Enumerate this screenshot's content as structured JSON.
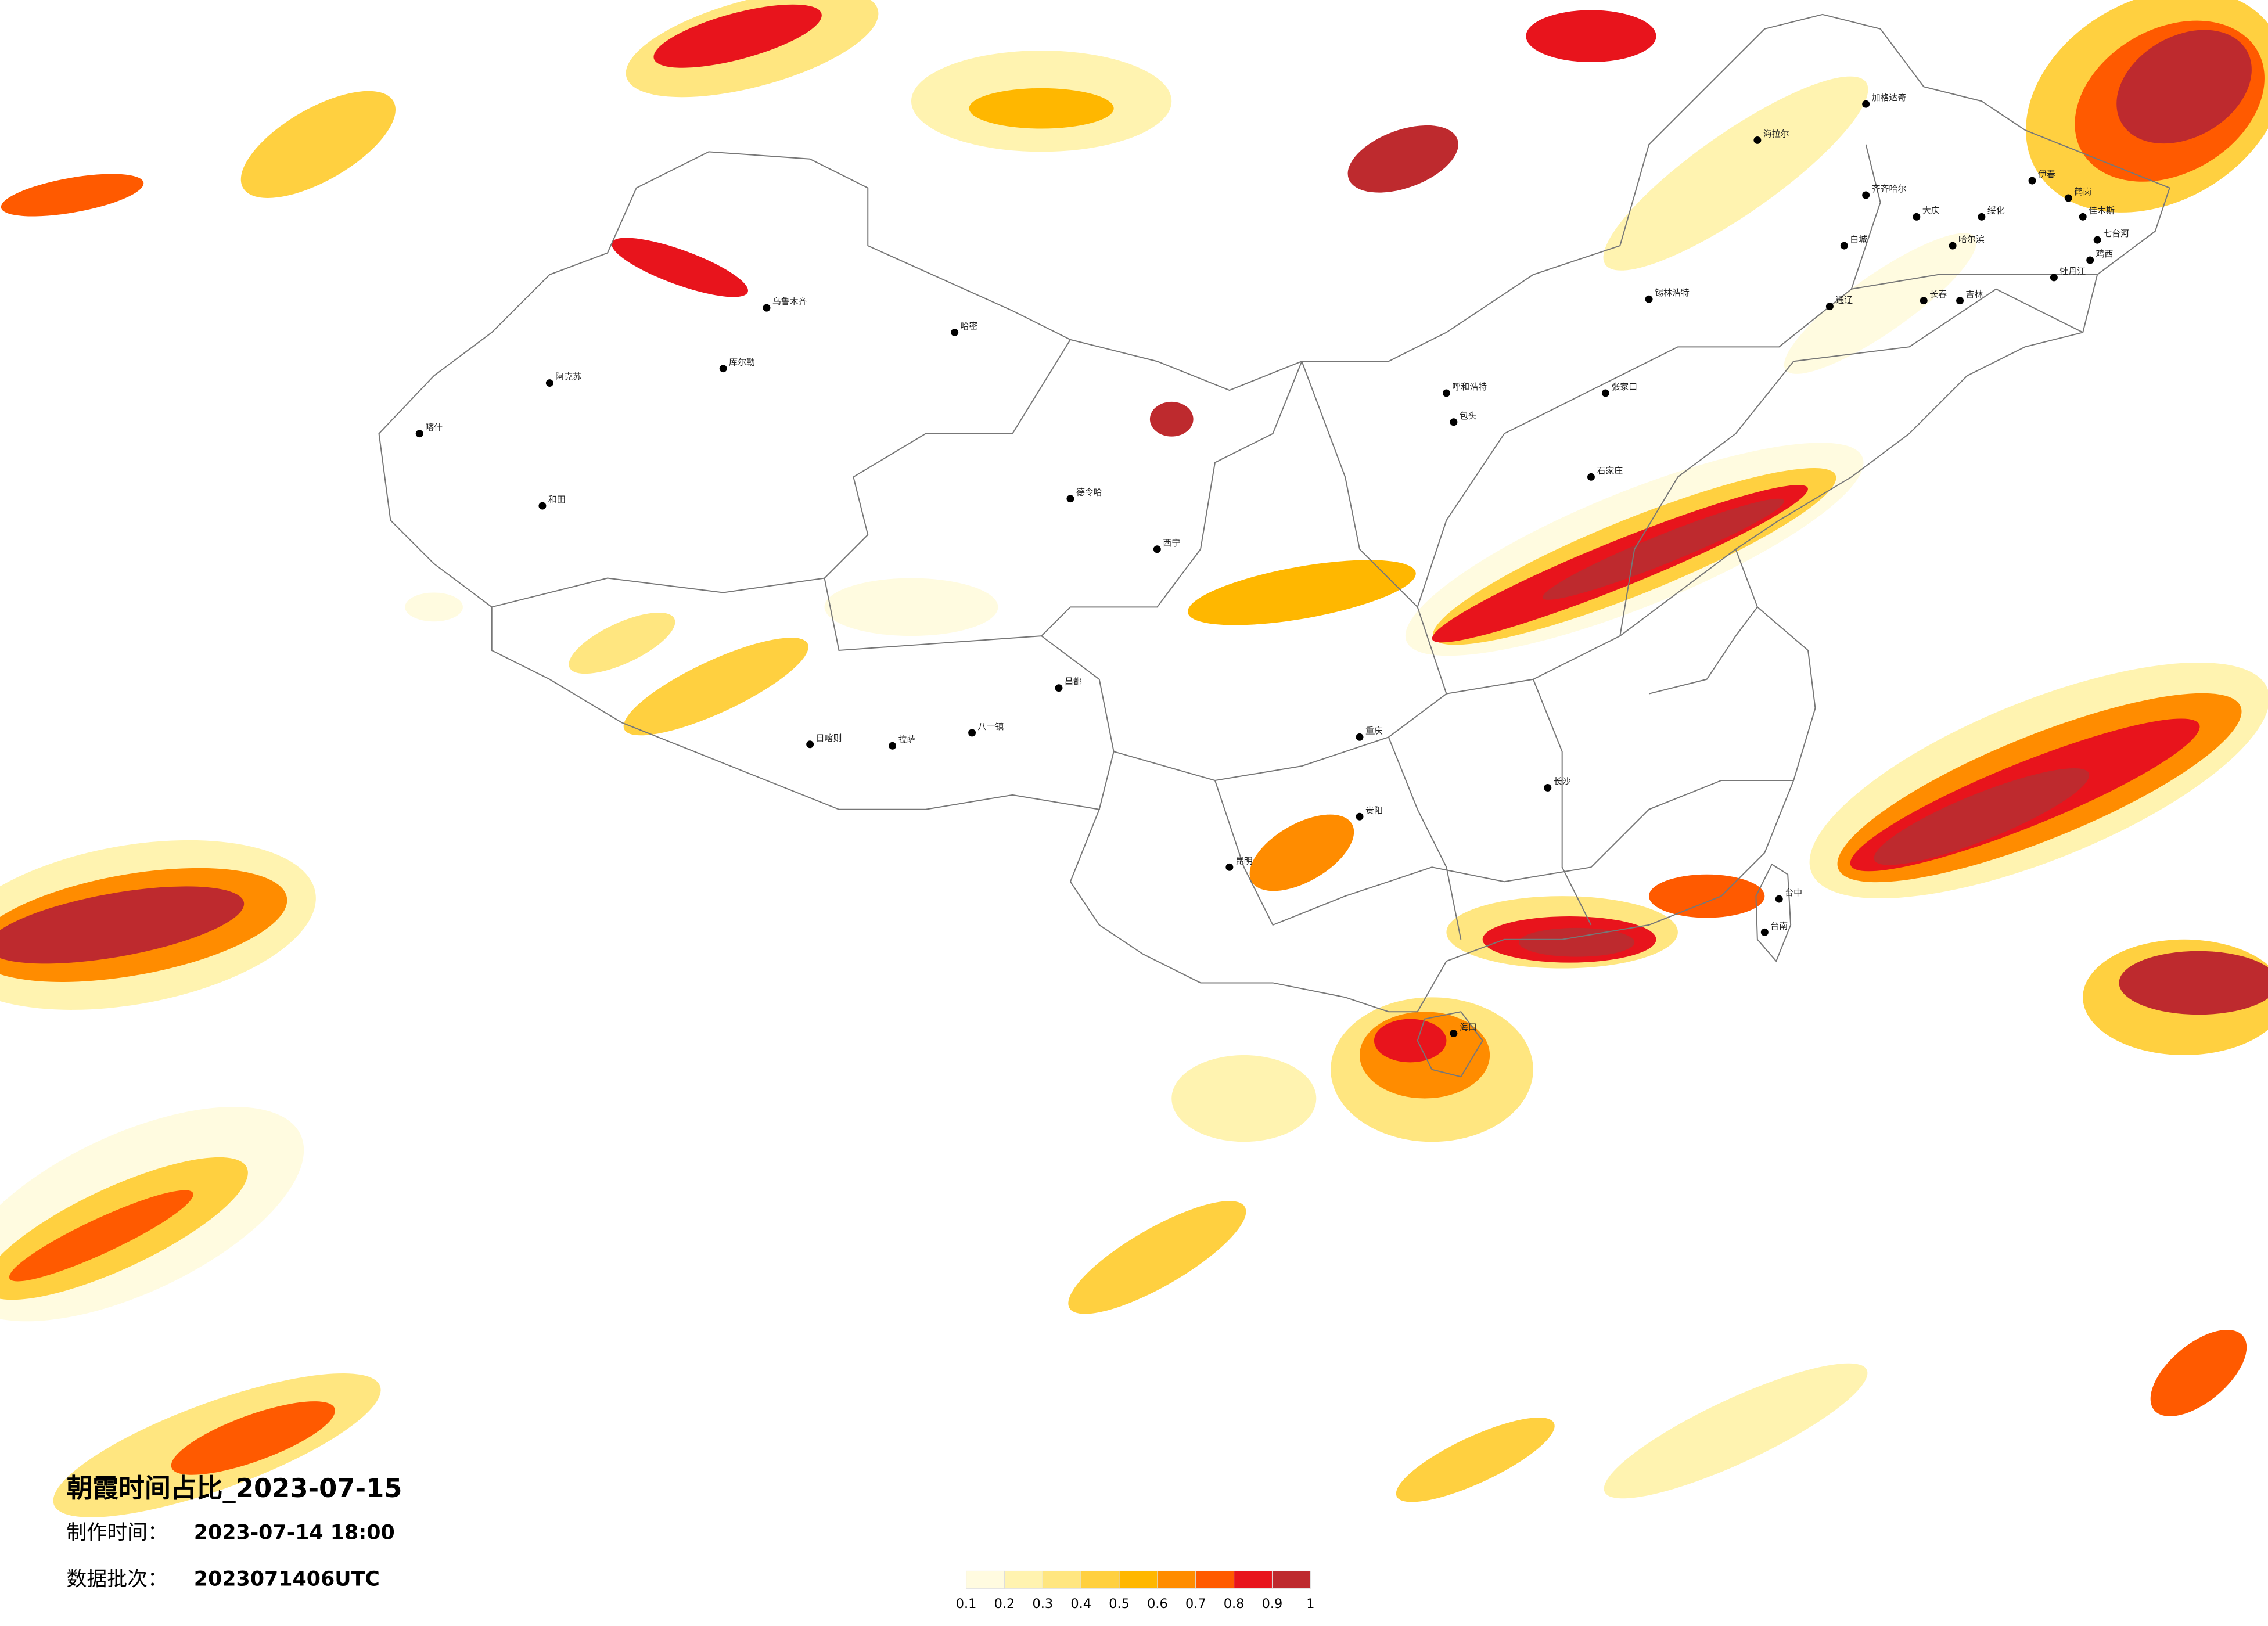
{
  "title": "朝霞时间占比_2023-07-15",
  "made_label": "制作时间：",
  "made_time": "2023-07-14 18:00",
  "batch_label": "数据批次：",
  "batch": "2023071406UTC",
  "colorbar": {
    "ticks": [
      0.1,
      0.2,
      0.3,
      0.4,
      0.5,
      0.6,
      0.7,
      0.8,
      0.9,
      1
    ],
    "colors": [
      "#fffbe0",
      "#fff3b0",
      "#ffe680",
      "#ffd040",
      "#ffb700",
      "#ff8c00",
      "#ff5a00",
      "#e8141c",
      "#be2a2e"
    ]
  },
  "cities": [
    "乌鲁木齐",
    "哈密",
    "库尔勒",
    "阿克苏",
    "喀什",
    "和田",
    "日喀则",
    "拉萨",
    "八一镇",
    "昌都",
    "德令哈",
    "呼和浩特",
    "包头",
    "锡林浩特",
    "海拉尔",
    "加格达奇",
    "齐齐哈尔",
    "大庆",
    "绥化",
    "哈尔滨",
    "伊春",
    "鹤岗",
    "佳木斯",
    "七台河",
    "鸡西",
    "牡丹江",
    "白城",
    "通辽",
    "长春",
    "吉林",
    "张家口",
    "石家庄",
    "西宁",
    "重庆",
    "贵阳",
    "昆明",
    "长沙",
    "台中",
    "台南",
    "海口"
  ]
}
